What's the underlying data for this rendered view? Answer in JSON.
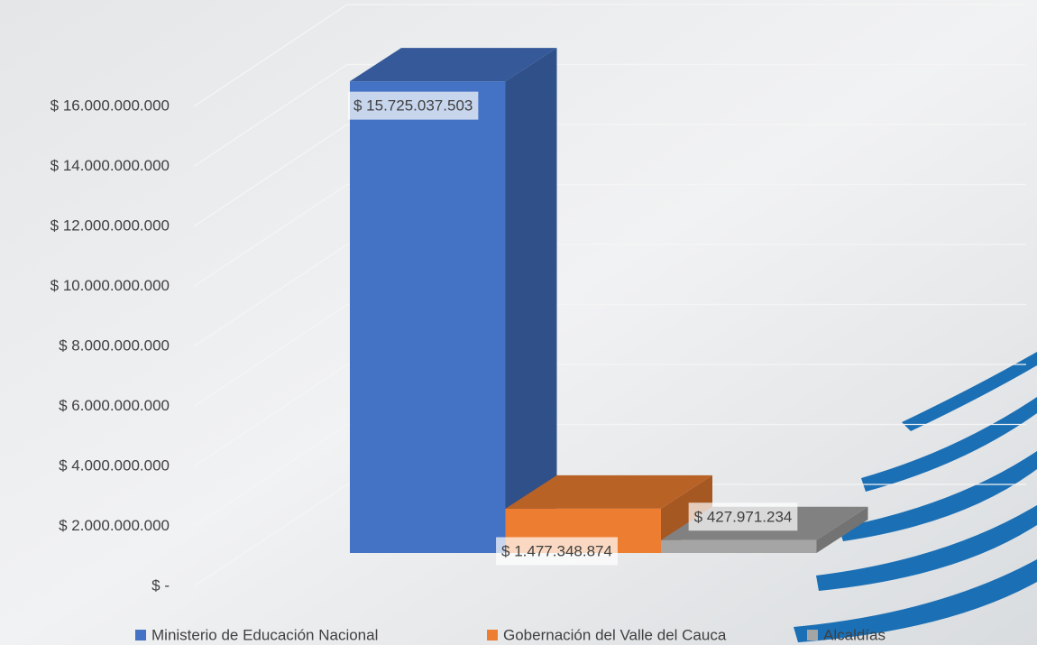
{
  "chart_data": {
    "type": "bar3d",
    "categories": [
      null
    ],
    "series": [
      {
        "name": "Ministerio de Educación Nacional",
        "color": "#4472c4",
        "values": [
          15725037503
        ],
        "value_labels": [
          "$ 15.725.037.503"
        ]
      },
      {
        "name": "Gobernación del Valle del Cauca",
        "color": "#ed7d31",
        "values": [
          1477348874
        ],
        "value_labels": [
          "$ 1.477.348.874"
        ]
      },
      {
        "name": "Alcaldías",
        "color": "#a5a5a5",
        "values": [
          427971234
        ],
        "value_labels": [
          "$ 427.971.234"
        ]
      }
    ],
    "ylim": [
      0,
      16000000000
    ],
    "yticks": [
      {
        "value": 0,
        "label": "$ -"
      },
      {
        "value": 2000000000,
        "label": "$ 2.000.000.000"
      },
      {
        "value": 4000000000,
        "label": "$ 4.000.000.000"
      },
      {
        "value": 6000000000,
        "label": "$ 6.000.000.000"
      },
      {
        "value": 8000000000,
        "label": "$ 8.000.000.000"
      },
      {
        "value": 10000000000,
        "label": "$ 10.000.000.000"
      },
      {
        "value": 12000000000,
        "label": "$ 12.000.000.000"
      },
      {
        "value": 14000000000,
        "label": "$ 14.000.000.000"
      },
      {
        "value": 16000000000,
        "label": "$ 16.000.000.000"
      }
    ],
    "grid": true,
    "legend": "bottom"
  }
}
